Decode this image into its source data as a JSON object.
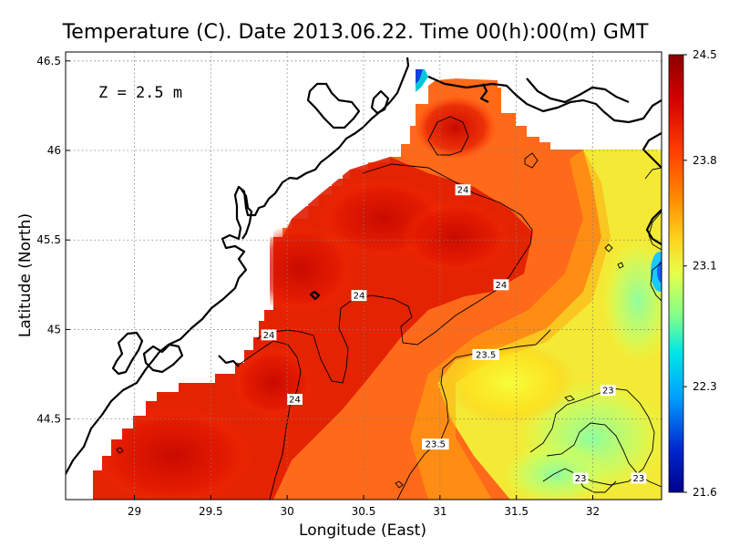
{
  "title": "Temperature (C). Date 2013.06.22. Time 00(h):00(m) GMT",
  "xlabel": "Longitude (East)",
  "ylabel": "Latitude (North)",
  "depth_label": "Z = 2.5 m",
  "chart_data": {
    "type": "heatmap",
    "variable": "Temperature",
    "units": "C",
    "depth_m": 2.5,
    "xlim": [
      28.55,
      32.45
    ],
    "ylim": [
      44.05,
      46.55
    ],
    "x_ticks": [
      "29",
      "29.5",
      "30",
      "30.5",
      "31",
      "31.5",
      "32"
    ],
    "y_ticks": [
      "44.5",
      "45",
      "45.5",
      "46",
      "46.5"
    ],
    "colorbar": {
      "min": 21.6,
      "max": 24.5,
      "ticks": [
        "24.5",
        "23.8",
        "23.1",
        "22.3",
        "21.6"
      ],
      "colors": [
        "#8b0000",
        "#d40000",
        "#ff3d00",
        "#ff8c00",
        "#ffd21e",
        "#e6ff4a",
        "#7cff8c",
        "#00e6e6",
        "#00a2ff",
        "#0028d0",
        "#00008c"
      ]
    },
    "contour_labels": [
      {
        "value": "24",
        "lon": 31.15,
        "lat": 45.78
      },
      {
        "value": "24",
        "lon": 29.88,
        "lat": 44.97
      },
      {
        "value": "24",
        "lon": 30.47,
        "lat": 45.19
      },
      {
        "value": "24",
        "lon": 31.4,
        "lat": 45.25
      },
      {
        "value": "24",
        "lon": 30.05,
        "lat": 44.61
      },
      {
        "value": "23.5",
        "lon": 31.3,
        "lat": 44.86
      },
      {
        "value": "23.5",
        "lon": 30.97,
        "lat": 44.36
      },
      {
        "value": "23",
        "lon": 32.1,
        "lat": 44.66
      },
      {
        "value": "23",
        "lon": 31.92,
        "lat": 44.17
      },
      {
        "value": "23",
        "lon": 32.3,
        "lat": 44.17
      }
    ]
  }
}
